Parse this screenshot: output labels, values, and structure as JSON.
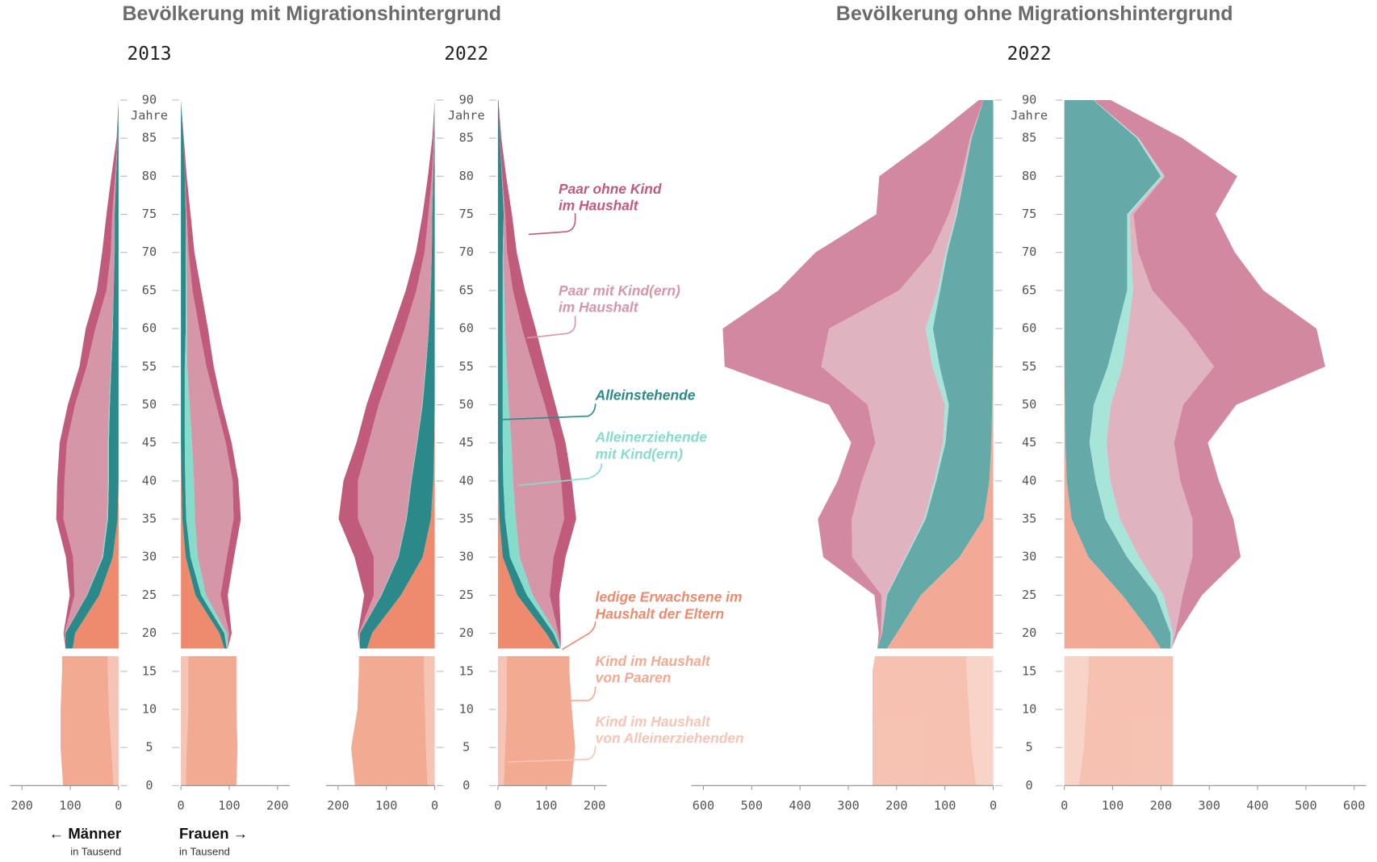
{
  "group_titles": [
    "Bevölkerung mit Migrationshintergrund",
    "Bevölkerung ohne Migrationshintergrund"
  ],
  "men_label": "← Männer",
  "women_label": "Frauen →",
  "unit": "in Tausend",
  "age_unit": "Jahre",
  "series": [
    {
      "name": "Kind im Haushalt von Alleinerziehenden",
      "color": "#f6c4b4"
    },
    {
      "name": "Kind im Haushalt von Paaren",
      "color": "#f3aa93"
    },
    {
      "name": "ledige Erwachsene im Haushalt der Eltern",
      "color": "#ee8a6e"
    },
    {
      "name": "Alleinstehende",
      "color": "#2b8a89"
    },
    {
      "name": "Alleinerziehende mit Kind(ern)",
      "color": "#86dccb"
    },
    {
      "name": "Paar mit Kind(ern) im Haushalt",
      "color": "#d596a8"
    },
    {
      "name": "Paar ohne Kind im Haushalt",
      "color": "#c05b7c"
    }
  ],
  "chart_data": [
    {
      "type": "pyramid",
      "title": "2013",
      "opacity": 1,
      "x": [
        0,
        5,
        10,
        15,
        17,
        18,
        20,
        25,
        30,
        35,
        40,
        45,
        50,
        55,
        60,
        65,
        70,
        75,
        80,
        85,
        90
      ],
      "ylim": [
        0,
        90
      ],
      "yticks": [
        0,
        5,
        10,
        15,
        20,
        25,
        30,
        35,
        40,
        45,
        50,
        55,
        60,
        65,
        70,
        75,
        80,
        85,
        90
      ],
      "xlim": [
        0,
        225
      ],
      "xticks": [
        0,
        100,
        200
      ],
      "men": [
        [
          10,
          15,
          20,
          22,
          22,
          null,
          null,
          null,
          null,
          null,
          null,
          null,
          null,
          null,
          null,
          null,
          null,
          null,
          null,
          null,
          null
        ],
        [
          105,
          105,
          100,
          95,
          95,
          null,
          null,
          null,
          null,
          null,
          null,
          null,
          null,
          null,
          null,
          null,
          null,
          null,
          null,
          null,
          null
        ],
        [
          null,
          null,
          null,
          null,
          null,
          95,
          90,
          40,
          12,
          2,
          0,
          0,
          0,
          0,
          0,
          0,
          0,
          0,
          0,
          0,
          0
        ],
        [
          null,
          null,
          null,
          null,
          null,
          15,
          20,
          25,
          20,
          20,
          20,
          20,
          18,
          15,
          12,
          10,
          8,
          8,
          5,
          2,
          0
        ],
        [
          null,
          null,
          null,
          null,
          null,
          0,
          0,
          1,
          2,
          2,
          2,
          2,
          2,
          1,
          1,
          0,
          0,
          0,
          0,
          0,
          0
        ],
        [
          null,
          null,
          null,
          null,
          null,
          0,
          2,
          25,
          60,
          90,
          90,
          85,
          70,
          50,
          35,
          15,
          8,
          5,
          2,
          0,
          0
        ],
        [
          null,
          null,
          null,
          null,
          null,
          0,
          2,
          10,
          15,
          15,
          15,
          15,
          15,
          15,
          20,
          20,
          18,
          12,
          8,
          2,
          0
        ]
      ],
      "women": [
        [
          10,
          12,
          15,
          15,
          15,
          null,
          null,
          null,
          null,
          null,
          null,
          null,
          null,
          null,
          null,
          null,
          null,
          null,
          null,
          null,
          null
        ],
        [
          105,
          105,
          100,
          100,
          100,
          null,
          null,
          null,
          null,
          null,
          null,
          null,
          null,
          null,
          null,
          null,
          null,
          null,
          null,
          null,
          null
        ],
        [
          null,
          null,
          null,
          null,
          null,
          90,
          80,
          30,
          10,
          3,
          1,
          0,
          0,
          0,
          0,
          0,
          0,
          0,
          0,
          0,
          0
        ],
        [
          null,
          null,
          null,
          null,
          null,
          5,
          10,
          12,
          10,
          8,
          8,
          8,
          8,
          8,
          10,
          10,
          10,
          10,
          8,
          5,
          0
        ],
        [
          null,
          null,
          null,
          null,
          null,
          2,
          5,
          10,
          15,
          18,
          18,
          15,
          10,
          5,
          3,
          2,
          1,
          0,
          0,
          0,
          0
        ],
        [
          null,
          null,
          null,
          null,
          null,
          0,
          5,
          30,
          60,
          80,
          80,
          70,
          55,
          40,
          25,
          12,
          5,
          2,
          0,
          0,
          0
        ],
        [
          null,
          null,
          null,
          null,
          null,
          0,
          5,
          15,
          15,
          15,
          12,
          12,
          12,
          15,
          18,
          18,
          12,
          8,
          4,
          1,
          0
        ]
      ]
    },
    {
      "type": "pyramid",
      "title": "2022",
      "opacity": 1,
      "x": [
        0,
        5,
        10,
        15,
        17,
        18,
        20,
        25,
        30,
        35,
        40,
        45,
        50,
        55,
        60,
        65,
        70,
        75,
        80,
        85,
        90
      ],
      "ylim": [
        0,
        90
      ],
      "yticks": [
        0,
        5,
        10,
        15,
        20,
        25,
        30,
        35,
        40,
        45,
        50,
        55,
        60,
        65,
        70,
        75,
        80,
        85,
        90
      ],
      "xlim": [
        0,
        225
      ],
      "xticks": [
        0,
        100,
        200
      ],
      "men": [
        [
          15,
          18,
          20,
          22,
          22,
          null,
          null,
          null,
          null,
          null,
          null,
          null,
          null,
          null,
          null,
          null,
          null,
          null,
          null,
          null,
          null
        ],
        [
          150,
          155,
          140,
          135,
          135,
          null,
          null,
          null,
          null,
          null,
          null,
          null,
          null,
          null,
          null,
          null,
          null,
          null,
          null,
          null,
          null
        ],
        [
          null,
          null,
          null,
          null,
          null,
          140,
          130,
          70,
          25,
          8,
          3,
          1,
          0,
          0,
          0,
          0,
          0,
          0,
          0,
          0,
          0
        ],
        [
          null,
          null,
          null,
          null,
          null,
          15,
          25,
          40,
          50,
          50,
          45,
          35,
          25,
          18,
          12,
          8,
          6,
          5,
          3,
          1,
          0
        ],
        [
          null,
          null,
          null,
          null,
          null,
          0,
          0,
          1,
          1,
          1,
          1,
          1,
          1,
          1,
          0,
          0,
          0,
          0,
          0,
          0,
          0
        ],
        [
          null,
          null,
          null,
          null,
          null,
          0,
          2,
          15,
          50,
          100,
          110,
          100,
          90,
          70,
          50,
          30,
          15,
          8,
          3,
          1,
          0
        ],
        [
          null,
          null,
          null,
          null,
          null,
          0,
          2,
          20,
          40,
          40,
          30,
          25,
          25,
          25,
          25,
          22,
          18,
          12,
          8,
          3,
          0
        ]
      ],
      "women": [
        [
          12,
          15,
          18,
          18,
          18,
          null,
          null,
          null,
          null,
          null,
          null,
          null,
          null,
          null,
          null,
          null,
          null,
          null,
          null,
          null,
          null
        ],
        [
          140,
          145,
          135,
          130,
          130,
          null,
          null,
          null,
          null,
          null,
          null,
          null,
          null,
          null,
          null,
          null,
          null,
          null,
          null,
          null,
          null
        ],
        [
          null,
          null,
          null,
          null,
          null,
          120,
          100,
          40,
          10,
          3,
          1,
          0,
          0,
          0,
          0,
          0,
          0,
          0,
          0,
          0,
          0
        ],
        [
          null,
          null,
          null,
          null,
          null,
          8,
          15,
          20,
          15,
          12,
          10,
          10,
          10,
          10,
          10,
          10,
          10,
          12,
          8,
          4,
          1
        ],
        [
          null,
          null,
          null,
          null,
          null,
          2,
          5,
          12,
          20,
          22,
          20,
          18,
          12,
          8,
          5,
          3,
          1,
          0,
          0,
          0,
          0
        ],
        [
          null,
          null,
          null,
          null,
          null,
          0,
          5,
          35,
          70,
          100,
          100,
          90,
          75,
          55,
          35,
          18,
          8,
          3,
          1,
          0,
          0
        ],
        [
          null,
          null,
          null,
          null,
          null,
          0,
          5,
          20,
          25,
          25,
          22,
          22,
          22,
          25,
          28,
          25,
          20,
          14,
          8,
          3,
          0
        ]
      ]
    },
    {
      "type": "pyramid",
      "title": "2022",
      "opacity": 0.72,
      "x": [
        0,
        5,
        10,
        15,
        17,
        18,
        20,
        25,
        30,
        35,
        40,
        45,
        50,
        55,
        60,
        65,
        70,
        75,
        80,
        85,
        90
      ],
      "ylim": [
        0,
        90
      ],
      "yticks": [
        0,
        5,
        10,
        15,
        20,
        25,
        30,
        35,
        40,
        45,
        50,
        55,
        60,
        65,
        70,
        75,
        80,
        85,
        90
      ],
      "xlim": [
        0,
        625
      ],
      "xticks": [
        0,
        100,
        200,
        300,
        400,
        500,
        600
      ],
      "men": [
        [
          35,
          45,
          50,
          55,
          55,
          null,
          null,
          null,
          null,
          null,
          null,
          null,
          null,
          null,
          null,
          null,
          null,
          null,
          null,
          null,
          null
        ],
        [
          215,
          205,
          200,
          195,
          190,
          null,
          null,
          null,
          null,
          null,
          null,
          null,
          null,
          null,
          null,
          null,
          null,
          null,
          null,
          null,
          null
        ],
        [
          null,
          null,
          null,
          null,
          null,
          220,
          200,
          150,
          70,
          20,
          8,
          4,
          2,
          1,
          0,
          0,
          0,
          0,
          0,
          0,
          0
        ],
        [
          null,
          null,
          null,
          null,
          null,
          20,
          30,
          70,
          110,
          120,
          110,
          95,
          90,
          110,
          125,
          110,
          95,
          75,
          60,
          45,
          20
        ],
        [
          null,
          null,
          null,
          null,
          null,
          0,
          0,
          1,
          2,
          3,
          4,
          5,
          8,
          15,
          15,
          5,
          3,
          2,
          1,
          1,
          0
        ],
        [
          null,
          null,
          null,
          null,
          null,
          0,
          2,
          10,
          110,
          150,
          150,
          140,
          160,
          230,
          200,
          80,
          30,
          15,
          5,
          2,
          0
        ],
        [
          null,
          null,
          null,
          null,
          null,
          0,
          5,
          15,
          60,
          70,
          50,
          50,
          80,
          200,
          220,
          250,
          240,
          150,
          170,
          80,
          10
        ]
      ],
      "women": [
        [
          30,
          40,
          45,
          50,
          50,
          null,
          null,
          null,
          null,
          null,
          null,
          null,
          null,
          null,
          null,
          null,
          null,
          null,
          null,
          null,
          null
        ],
        [
          195,
          185,
          180,
          175,
          175,
          null,
          null,
          null,
          null,
          null,
          null,
          null,
          null,
          null,
          null,
          null,
          null,
          null,
          null,
          null,
          null
        ],
        [
          null,
          null,
          null,
          null,
          null,
          200,
          180,
          120,
          50,
          15,
          5,
          2,
          1,
          0,
          0,
          0,
          0,
          0,
          0,
          0,
          0
        ],
        [
          null,
          null,
          null,
          null,
          null,
          20,
          40,
          70,
          80,
          70,
          60,
          50,
          60,
          90,
          110,
          130,
          130,
          130,
          200,
          150,
          60
        ],
        [
          null,
          null,
          null,
          null,
          null,
          2,
          5,
          15,
          25,
          30,
          30,
          35,
          35,
          30,
          22,
          12,
          8,
          5,
          5,
          3,
          1
        ],
        [
          null,
          null,
          null,
          null,
          null,
          0,
          5,
          40,
          110,
          150,
          145,
          140,
          150,
          190,
          120,
          40,
          15,
          8,
          3,
          1,
          0
        ],
        [
          null,
          null,
          null,
          null,
          null,
          0,
          5,
          40,
          100,
          85,
          80,
          70,
          110,
          230,
          270,
          230,
          200,
          170,
          150,
          90,
          35
        ]
      ]
    }
  ]
}
